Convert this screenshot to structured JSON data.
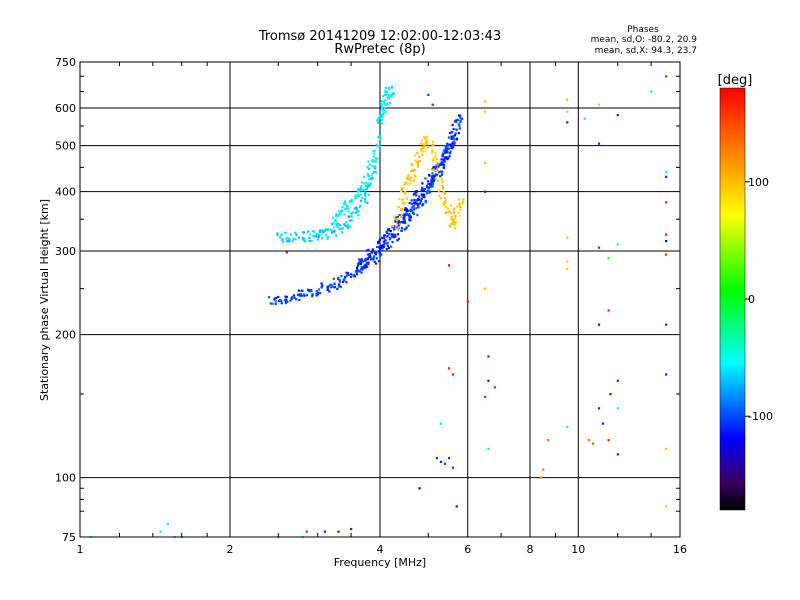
{
  "chart_data": {
    "type": "scatter",
    "title": "Tromsø 20141209 12:02:00-12:03:43",
    "subtitle": "RwPretec (8p)",
    "xlabel": "Frequency [MHz]",
    "ylabel": "Stationary phase Virtual Height [km]",
    "x_scale": "log",
    "y_scale": "log",
    "xlim": [
      1,
      16
    ],
    "ylim": [
      75,
      750
    ],
    "x_ticks": [
      1,
      2,
      4,
      6,
      8,
      10,
      16
    ],
    "y_ticks": [
      75,
      100,
      200,
      300,
      400,
      500,
      600,
      750
    ],
    "grid": true,
    "stats": {
      "heading": "Phases",
      "line_o": "mean, sd,O: -80.2, 20.9",
      "line_x": "mean, sd,X:  94.3, 23.7"
    },
    "colorbar": {
      "label": "[deg]",
      "range": [
        -180,
        180
      ],
      "ticks": [
        -100,
        0,
        100
      ]
    },
    "traces": [
      {
        "x": [
          2.4,
          2.7,
          3.0,
          3.3,
          3.6,
          3.9,
          4.2,
          4.5,
          4.8,
          5.1,
          5.4,
          5.6,
          5.8
        ],
        "y": [
          235,
          240,
          248,
          258,
          272,
          290,
          315,
          345,
          380,
          420,
          470,
          520,
          580
        ],
        "phase": -105
      },
      {
        "x": [
          3.6,
          3.9,
          4.2,
          4.5,
          4.8,
          5.1,
          5.4,
          5.7
        ],
        "y": [
          280,
          300,
          330,
          360,
          395,
          430,
          470,
          520
        ],
        "phase": -110
      },
      {
        "x": [
          2.5,
          2.8,
          3.1,
          3.4,
          3.7,
          3.9
        ],
        "y": [
          320,
          322,
          325,
          340,
          380,
          460
        ],
        "phase": -65
      },
      {
        "x": [
          3.2,
          3.5,
          3.8,
          4.0
        ],
        "y": [
          350,
          380,
          430,
          520
        ],
        "phase": -55
      },
      {
        "x": [
          4.0,
          4.1,
          4.2
        ],
        "y": [
          560,
          620,
          660
        ],
        "phase": -55
      },
      {
        "x": [
          4.3,
          4.5,
          4.7,
          5.0,
          5.3,
          5.6,
          5.8
        ],
        "y": [
          340,
          400,
          460,
          520,
          400,
          340,
          380
        ],
        "phase": 95
      }
    ],
    "points": [
      {
        "x": 5.0,
        "y": 640,
        "phase": -105
      },
      {
        "x": 5.1,
        "y": 610,
        "phase": -105
      },
      {
        "x": 5.2,
        "y": 110,
        "phase": -105
      },
      {
        "x": 5.3,
        "y": 108,
        "phase": -110
      },
      {
        "x": 5.4,
        "y": 107,
        "phase": -105
      },
      {
        "x": 5.5,
        "y": 110,
        "phase": -110
      },
      {
        "x": 5.6,
        "y": 105,
        "phase": -105
      },
      {
        "x": 5.7,
        "y": 87,
        "phase": -115
      },
      {
        "x": 4.8,
        "y": 95,
        "phase": -120
      },
      {
        "x": 6.0,
        "y": 235,
        "phase": 170
      },
      {
        "x": 5.5,
        "y": 280,
        "phase": 175
      },
      {
        "x": 5.5,
        "y": 170,
        "phase": 170
      },
      {
        "x": 5.6,
        "y": 165,
        "phase": 175
      },
      {
        "x": 6.5,
        "y": 620,
        "phase": 100
      },
      {
        "x": 6.5,
        "y": 590,
        "phase": 95
      },
      {
        "x": 6.5,
        "y": 460,
        "phase": 105
      },
      {
        "x": 6.5,
        "y": 400,
        "phase": -110
      },
      {
        "x": 6.5,
        "y": 250,
        "phase": 100
      },
      {
        "x": 6.6,
        "y": 180,
        "phase": -105
      },
      {
        "x": 6.6,
        "y": 160,
        "phase": -110
      },
      {
        "x": 6.5,
        "y": 148,
        "phase": 170
      },
      {
        "x": 6.6,
        "y": 115,
        "phase": -40
      },
      {
        "x": 5.3,
        "y": 130,
        "phase": -40
      },
      {
        "x": 6.8,
        "y": 155,
        "phase": 175
      },
      {
        "x": 8.4,
        "y": 100,
        "phase": 120
      },
      {
        "x": 8.5,
        "y": 104,
        "phase": 130
      },
      {
        "x": 8.7,
        "y": 120,
        "phase": 140
      },
      {
        "x": 9.5,
        "y": 625,
        "phase": 100
      },
      {
        "x": 9.5,
        "y": 590,
        "phase": 100
      },
      {
        "x": 9.5,
        "y": 560,
        "phase": -110
      },
      {
        "x": 9.5,
        "y": 320,
        "phase": 100
      },
      {
        "x": 9.5,
        "y": 285,
        "phase": 95
      },
      {
        "x": 9.5,
        "y": 275,
        "phase": 100
      },
      {
        "x": 9.5,
        "y": 128,
        "phase": -40
      },
      {
        "x": 10.3,
        "y": 570,
        "phase": -60
      },
      {
        "x": 10.5,
        "y": 120,
        "phase": 130
      },
      {
        "x": 10.7,
        "y": 118,
        "phase": 140
      },
      {
        "x": 11.0,
        "y": 610,
        "phase": 40
      },
      {
        "x": 11.0,
        "y": 505,
        "phase": -110
      },
      {
        "x": 11.0,
        "y": 305,
        "phase": -105
      },
      {
        "x": 11.0,
        "y": 210,
        "phase": -110
      },
      {
        "x": 11.0,
        "y": 140,
        "phase": -110
      },
      {
        "x": 11.2,
        "y": 130,
        "phase": -115
      },
      {
        "x": 11.5,
        "y": 290,
        "phase": 20
      },
      {
        "x": 11.5,
        "y": 225,
        "phase": 170
      },
      {
        "x": 11.5,
        "y": 120,
        "phase": 170
      },
      {
        "x": 11.6,
        "y": 150,
        "phase": -110
      },
      {
        "x": 12.0,
        "y": 580,
        "phase": -110
      },
      {
        "x": 12.0,
        "y": 310,
        "phase": -50
      },
      {
        "x": 12.0,
        "y": 160,
        "phase": -110
      },
      {
        "x": 12.0,
        "y": 140,
        "phase": -50
      },
      {
        "x": 12.0,
        "y": 112,
        "phase": -110
      },
      {
        "x": 14.0,
        "y": 650,
        "phase": -50
      },
      {
        "x": 15.0,
        "y": 700,
        "phase": 170
      },
      {
        "x": 15.0,
        "y": 440,
        "phase": -45
      },
      {
        "x": 15.0,
        "y": 430,
        "phase": -110
      },
      {
        "x": 15.0,
        "y": 380,
        "phase": 170
      },
      {
        "x": 15.0,
        "y": 325,
        "phase": 175
      },
      {
        "x": 15.0,
        "y": 315,
        "phase": -120
      },
      {
        "x": 15.0,
        "y": 295,
        "phase": 165
      },
      {
        "x": 15.0,
        "y": 210,
        "phase": -110
      },
      {
        "x": 15.0,
        "y": 165,
        "phase": -110
      },
      {
        "x": 15.0,
        "y": 115,
        "phase": 100
      },
      {
        "x": 15.0,
        "y": 87,
        "phase": 100
      },
      {
        "x": 1.05,
        "y": 75,
        "phase": -50
      },
      {
        "x": 1.45,
        "y": 77,
        "phase": -45
      },
      {
        "x": 1.5,
        "y": 80,
        "phase": -50
      },
      {
        "x": 1.55,
        "y": 75,
        "phase": -50
      },
      {
        "x": 1.6,
        "y": 75,
        "phase": -55
      },
      {
        "x": 2.5,
        "y": 75,
        "phase": -50
      },
      {
        "x": 2.8,
        "y": 75,
        "phase": -55
      },
      {
        "x": 2.85,
        "y": 77,
        "phase": 170
      },
      {
        "x": 2.6,
        "y": 298,
        "phase": 170
      },
      {
        "x": 3.1,
        "y": 77,
        "phase": -110
      },
      {
        "x": 3.3,
        "y": 77,
        "phase": -110
      },
      {
        "x": 3.5,
        "y": 78,
        "phase": -110
      }
    ]
  }
}
